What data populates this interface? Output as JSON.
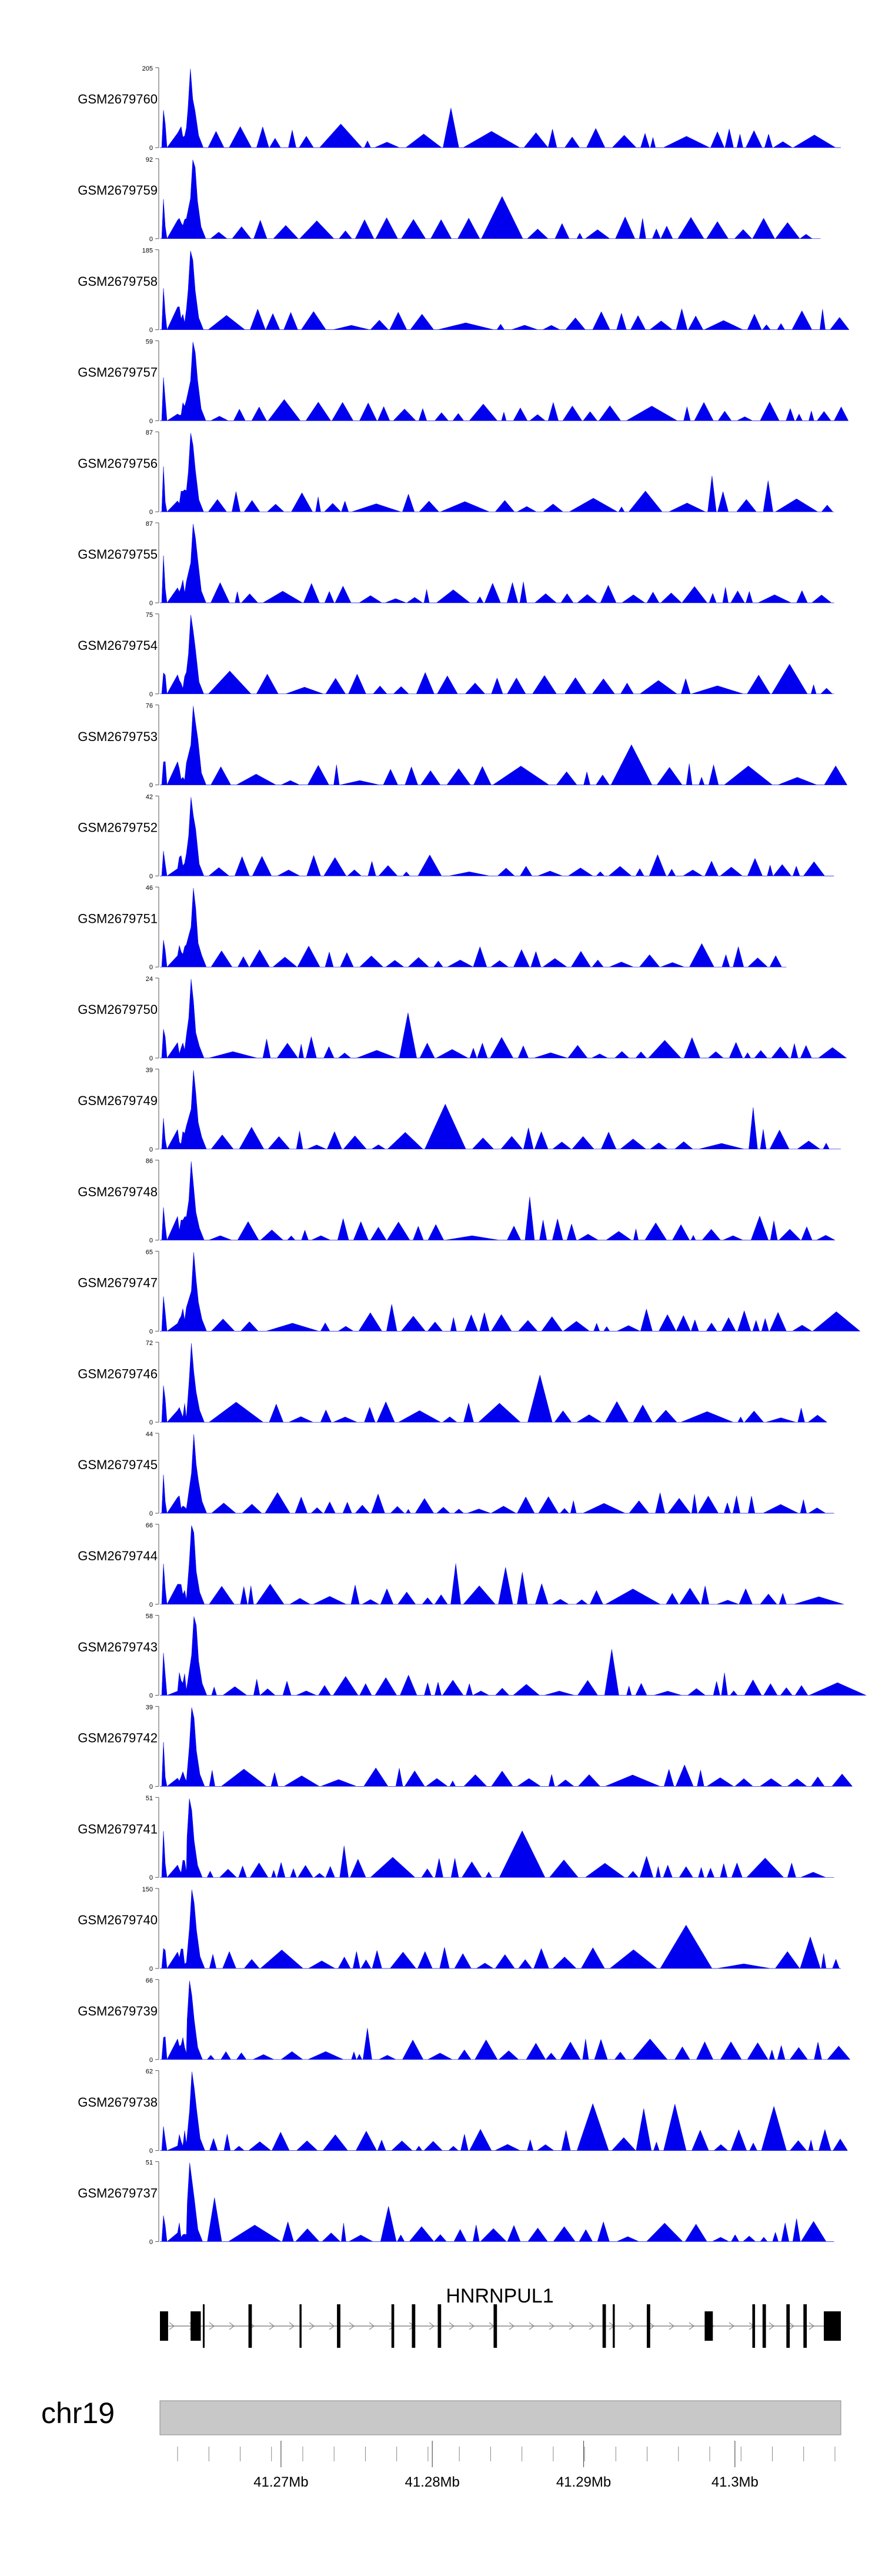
{
  "chart_data": {
    "type": "area",
    "chromosome": "chr19",
    "gene": "HNRNPUL1",
    "colors": {
      "signal": "#0000ee",
      "ideogram": "#c8c8c8",
      "axis": "#555555",
      "gene": "#000000",
      "intron": "#888888"
    },
    "x_range_mb": [
      41.262,
      41.307
    ],
    "x_ticks": [
      41.27,
      41.28,
      41.29,
      41.3
    ],
    "x_tick_labels": [
      "41.27Mb",
      "41.28Mb",
      "41.29Mb",
      "41.3Mb"
    ],
    "x_minor_tick_count": 22,
    "tracks": [
      {
        "name": "GSM2679760",
        "ymax": 205,
        "ymax_label": "205",
        "ymin_label": "0",
        "end": 1.0
      },
      {
        "name": "GSM2679759",
        "ymax": 92,
        "ymax_label": "92",
        "ymin_label": "0",
        "end": 0.97
      },
      {
        "name": "GSM2679758",
        "ymax": 185,
        "ymax_label": "185",
        "ymin_label": "0",
        "end": 1.0
      },
      {
        "name": "GSM2679757",
        "ymax": 59,
        "ymax_label": "59",
        "ymin_label": "0",
        "end": 1.0
      },
      {
        "name": "GSM2679756",
        "ymax": 87,
        "ymax_label": "87",
        "ymin_label": "0",
        "end": 0.99
      },
      {
        "name": "GSM2679755",
        "ymax": 87,
        "ymax_label": "87",
        "ymin_label": "0",
        "end": 0.99
      },
      {
        "name": "GSM2679754",
        "ymax": 75,
        "ymax_label": "75",
        "ymin_label": "0",
        "end": 0.99
      },
      {
        "name": "GSM2679753",
        "ymax": 76,
        "ymax_label": "76",
        "ymin_label": "0",
        "end": 0.99
      },
      {
        "name": "GSM2679752",
        "ymax": 42,
        "ymax_label": "42",
        "ymin_label": "0",
        "end": 0.99
      },
      {
        "name": "GSM2679751",
        "ymax": 46,
        "ymax_label": "46",
        "ymin_label": "0",
        "end": 0.92
      },
      {
        "name": "GSM2679750",
        "ymax": 24,
        "ymax_label": "24",
        "ymin_label": "0",
        "end": 1.0
      },
      {
        "name": "GSM2679749",
        "ymax": 39,
        "ymax_label": "39",
        "ymin_label": "0",
        "end": 1.0
      },
      {
        "name": "GSM2679748",
        "ymax": 86,
        "ymax_label": "86",
        "ymin_label": "0",
        "end": 0.99
      },
      {
        "name": "GSM2679747",
        "ymax": 65,
        "ymax_label": "65",
        "ymin_label": "0",
        "end": 0.99
      },
      {
        "name": "GSM2679746",
        "ymax": 72,
        "ymax_label": "72",
        "ymin_label": "0",
        "end": 0.97
      },
      {
        "name": "GSM2679745",
        "ymax": 44,
        "ymax_label": "44",
        "ymin_label": "0",
        "end": 0.99
      },
      {
        "name": "GSM2679744",
        "ymax": 66,
        "ymax_label": "66",
        "ymin_label": "0",
        "end": 1.0
      },
      {
        "name": "GSM2679743",
        "ymax": 58,
        "ymax_label": "58",
        "ymin_label": "0",
        "end": 1.0
      },
      {
        "name": "GSM2679742",
        "ymax": 39,
        "ymax_label": "39",
        "ymin_label": "0",
        "end": 1.0
      },
      {
        "name": "GSM2679741",
        "ymax": 51,
        "ymax_label": "51",
        "ymin_label": "0",
        "end": 0.99
      },
      {
        "name": "GSM2679740",
        "ymax": 150,
        "ymax_label": "150",
        "ymin_label": "0",
        "end": 1.0
      },
      {
        "name": "GSM2679739",
        "ymax": 66,
        "ymax_label": "66",
        "ymin_label": "0",
        "end": 1.0
      },
      {
        "name": "GSM2679738",
        "ymax": 62,
        "ymax_label": "62",
        "ymin_label": "0",
        "end": 1.0
      },
      {
        "name": "GSM2679737",
        "ymax": 51,
        "ymax_label": "51",
        "ymin_label": "0",
        "end": 0.99
      }
    ],
    "gene_model": {
      "name": "HNRNPUL1",
      "start": 0.0,
      "end": 1.0,
      "exons": [
        [
          0.0,
          0.012,
          "tall"
        ],
        [
          0.045,
          0.06,
          "tall"
        ],
        [
          0.063,
          0.065,
          "thin"
        ],
        [
          0.13,
          0.135,
          "thin"
        ],
        [
          0.205,
          0.208,
          "thin"
        ],
        [
          0.26,
          0.265,
          "thin"
        ],
        [
          0.34,
          0.344,
          "thin"
        ],
        [
          0.37,
          0.375,
          "thin"
        ],
        [
          0.408,
          0.413,
          "thin"
        ],
        [
          0.49,
          0.495,
          "thin"
        ],
        [
          0.65,
          0.655,
          "thin"
        ],
        [
          0.665,
          0.668,
          "thin"
        ],
        [
          0.715,
          0.72,
          "thin"
        ],
        [
          0.8,
          0.812,
          "tall"
        ],
        [
          0.87,
          0.874,
          "thin"
        ],
        [
          0.885,
          0.89,
          "thin"
        ],
        [
          0.92,
          0.925,
          "thin"
        ],
        [
          0.945,
          0.95,
          "thin"
        ],
        [
          0.975,
          1.0,
          "tall"
        ]
      ]
    }
  }
}
